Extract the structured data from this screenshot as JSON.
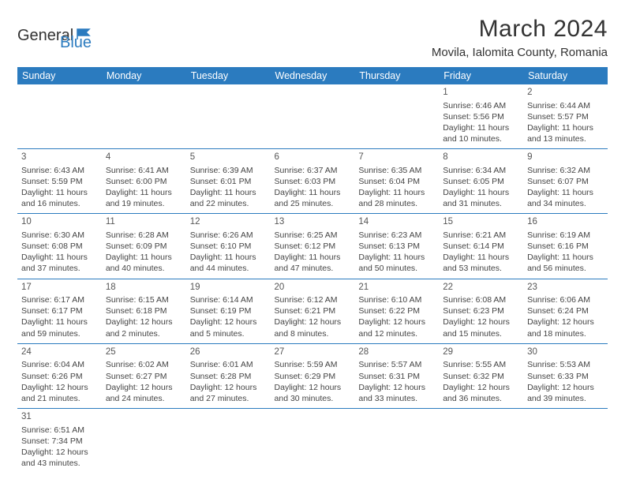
{
  "logo": {
    "text1": "General",
    "text2": "Blue"
  },
  "title": "March 2024",
  "location": "Movila, Ialomita County, Romania",
  "day_headers": [
    "Sunday",
    "Monday",
    "Tuesday",
    "Wednesday",
    "Thursday",
    "Friday",
    "Saturday"
  ],
  "colors": {
    "header_bg": "#2b7bbf",
    "header_text": "#ffffff",
    "rule": "#2b7bbf",
    "text": "#444444",
    "background": "#ffffff"
  },
  "weeks": [
    [
      null,
      null,
      null,
      null,
      null,
      {
        "n": "1",
        "sr": "Sunrise: 6:46 AM",
        "ss": "Sunset: 5:56 PM",
        "d1": "Daylight: 11 hours",
        "d2": "and 10 minutes."
      },
      {
        "n": "2",
        "sr": "Sunrise: 6:44 AM",
        "ss": "Sunset: 5:57 PM",
        "d1": "Daylight: 11 hours",
        "d2": "and 13 minutes."
      }
    ],
    [
      {
        "n": "3",
        "sr": "Sunrise: 6:43 AM",
        "ss": "Sunset: 5:59 PM",
        "d1": "Daylight: 11 hours",
        "d2": "and 16 minutes."
      },
      {
        "n": "4",
        "sr": "Sunrise: 6:41 AM",
        "ss": "Sunset: 6:00 PM",
        "d1": "Daylight: 11 hours",
        "d2": "and 19 minutes."
      },
      {
        "n": "5",
        "sr": "Sunrise: 6:39 AM",
        "ss": "Sunset: 6:01 PM",
        "d1": "Daylight: 11 hours",
        "d2": "and 22 minutes."
      },
      {
        "n": "6",
        "sr": "Sunrise: 6:37 AM",
        "ss": "Sunset: 6:03 PM",
        "d1": "Daylight: 11 hours",
        "d2": "and 25 minutes."
      },
      {
        "n": "7",
        "sr": "Sunrise: 6:35 AM",
        "ss": "Sunset: 6:04 PM",
        "d1": "Daylight: 11 hours",
        "d2": "and 28 minutes."
      },
      {
        "n": "8",
        "sr": "Sunrise: 6:34 AM",
        "ss": "Sunset: 6:05 PM",
        "d1": "Daylight: 11 hours",
        "d2": "and 31 minutes."
      },
      {
        "n": "9",
        "sr": "Sunrise: 6:32 AM",
        "ss": "Sunset: 6:07 PM",
        "d1": "Daylight: 11 hours",
        "d2": "and 34 minutes."
      }
    ],
    [
      {
        "n": "10",
        "sr": "Sunrise: 6:30 AM",
        "ss": "Sunset: 6:08 PM",
        "d1": "Daylight: 11 hours",
        "d2": "and 37 minutes."
      },
      {
        "n": "11",
        "sr": "Sunrise: 6:28 AM",
        "ss": "Sunset: 6:09 PM",
        "d1": "Daylight: 11 hours",
        "d2": "and 40 minutes."
      },
      {
        "n": "12",
        "sr": "Sunrise: 6:26 AM",
        "ss": "Sunset: 6:10 PM",
        "d1": "Daylight: 11 hours",
        "d2": "and 44 minutes."
      },
      {
        "n": "13",
        "sr": "Sunrise: 6:25 AM",
        "ss": "Sunset: 6:12 PM",
        "d1": "Daylight: 11 hours",
        "d2": "and 47 minutes."
      },
      {
        "n": "14",
        "sr": "Sunrise: 6:23 AM",
        "ss": "Sunset: 6:13 PM",
        "d1": "Daylight: 11 hours",
        "d2": "and 50 minutes."
      },
      {
        "n": "15",
        "sr": "Sunrise: 6:21 AM",
        "ss": "Sunset: 6:14 PM",
        "d1": "Daylight: 11 hours",
        "d2": "and 53 minutes."
      },
      {
        "n": "16",
        "sr": "Sunrise: 6:19 AM",
        "ss": "Sunset: 6:16 PM",
        "d1": "Daylight: 11 hours",
        "d2": "and 56 minutes."
      }
    ],
    [
      {
        "n": "17",
        "sr": "Sunrise: 6:17 AM",
        "ss": "Sunset: 6:17 PM",
        "d1": "Daylight: 11 hours",
        "d2": "and 59 minutes."
      },
      {
        "n": "18",
        "sr": "Sunrise: 6:15 AM",
        "ss": "Sunset: 6:18 PM",
        "d1": "Daylight: 12 hours",
        "d2": "and 2 minutes."
      },
      {
        "n": "19",
        "sr": "Sunrise: 6:14 AM",
        "ss": "Sunset: 6:19 PM",
        "d1": "Daylight: 12 hours",
        "d2": "and 5 minutes."
      },
      {
        "n": "20",
        "sr": "Sunrise: 6:12 AM",
        "ss": "Sunset: 6:21 PM",
        "d1": "Daylight: 12 hours",
        "d2": "and 8 minutes."
      },
      {
        "n": "21",
        "sr": "Sunrise: 6:10 AM",
        "ss": "Sunset: 6:22 PM",
        "d1": "Daylight: 12 hours",
        "d2": "and 12 minutes."
      },
      {
        "n": "22",
        "sr": "Sunrise: 6:08 AM",
        "ss": "Sunset: 6:23 PM",
        "d1": "Daylight: 12 hours",
        "d2": "and 15 minutes."
      },
      {
        "n": "23",
        "sr": "Sunrise: 6:06 AM",
        "ss": "Sunset: 6:24 PM",
        "d1": "Daylight: 12 hours",
        "d2": "and 18 minutes."
      }
    ],
    [
      {
        "n": "24",
        "sr": "Sunrise: 6:04 AM",
        "ss": "Sunset: 6:26 PM",
        "d1": "Daylight: 12 hours",
        "d2": "and 21 minutes."
      },
      {
        "n": "25",
        "sr": "Sunrise: 6:02 AM",
        "ss": "Sunset: 6:27 PM",
        "d1": "Daylight: 12 hours",
        "d2": "and 24 minutes."
      },
      {
        "n": "26",
        "sr": "Sunrise: 6:01 AM",
        "ss": "Sunset: 6:28 PM",
        "d1": "Daylight: 12 hours",
        "d2": "and 27 minutes."
      },
      {
        "n": "27",
        "sr": "Sunrise: 5:59 AM",
        "ss": "Sunset: 6:29 PM",
        "d1": "Daylight: 12 hours",
        "d2": "and 30 minutes."
      },
      {
        "n": "28",
        "sr": "Sunrise: 5:57 AM",
        "ss": "Sunset: 6:31 PM",
        "d1": "Daylight: 12 hours",
        "d2": "and 33 minutes."
      },
      {
        "n": "29",
        "sr": "Sunrise: 5:55 AM",
        "ss": "Sunset: 6:32 PM",
        "d1": "Daylight: 12 hours",
        "d2": "and 36 minutes."
      },
      {
        "n": "30",
        "sr": "Sunrise: 5:53 AM",
        "ss": "Sunset: 6:33 PM",
        "d1": "Daylight: 12 hours",
        "d2": "and 39 minutes."
      }
    ],
    [
      {
        "n": "31",
        "sr": "Sunrise: 6:51 AM",
        "ss": "Sunset: 7:34 PM",
        "d1": "Daylight: 12 hours",
        "d2": "and 43 minutes."
      },
      null,
      null,
      null,
      null,
      null,
      null
    ]
  ]
}
